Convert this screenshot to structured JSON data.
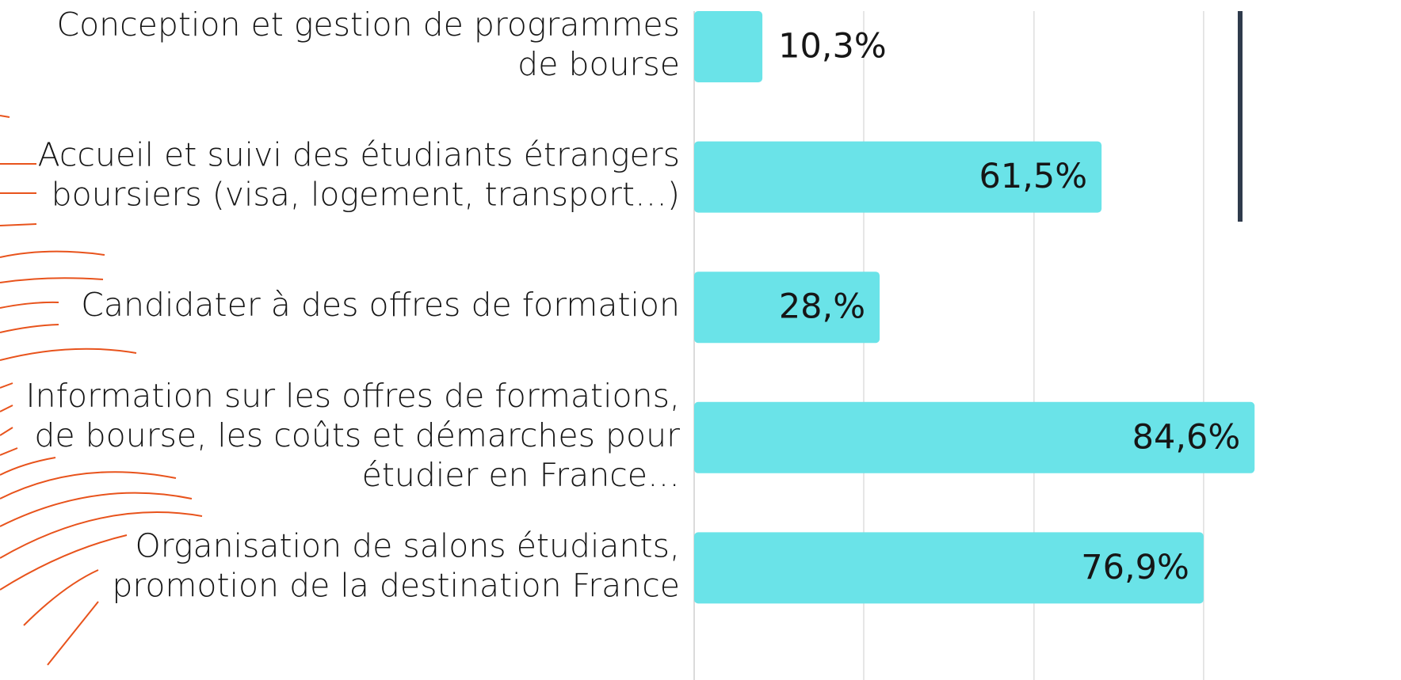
{
  "chart_data": {
    "type": "bar",
    "orientation": "horizontal",
    "categories": [
      "Conception et gestion de programmes\nde bourse",
      "Accueil et suivi des étudiants étrangers\nboursiers (visa, logement, transport…)",
      "Candidater à des offres de formation",
      "Information sur les offres de formations,\nde bourse, les coûts et démarches pour\nétudier en France…",
      "Organisation de salons étudiants,\npromotion de la destination France"
    ],
    "values": [
      10.3,
      61.5,
      28,
      84.6,
      76.9
    ],
    "value_labels": [
      "10,3%",
      "61,5%",
      "28,%",
      "84,6%",
      "76,9%"
    ],
    "color": "#6ae3e8",
    "xlim": [
      0,
      106.7
    ],
    "xticks": [
      0,
      25.6,
      51.3,
      76.9
    ],
    "grid": true
  }
}
